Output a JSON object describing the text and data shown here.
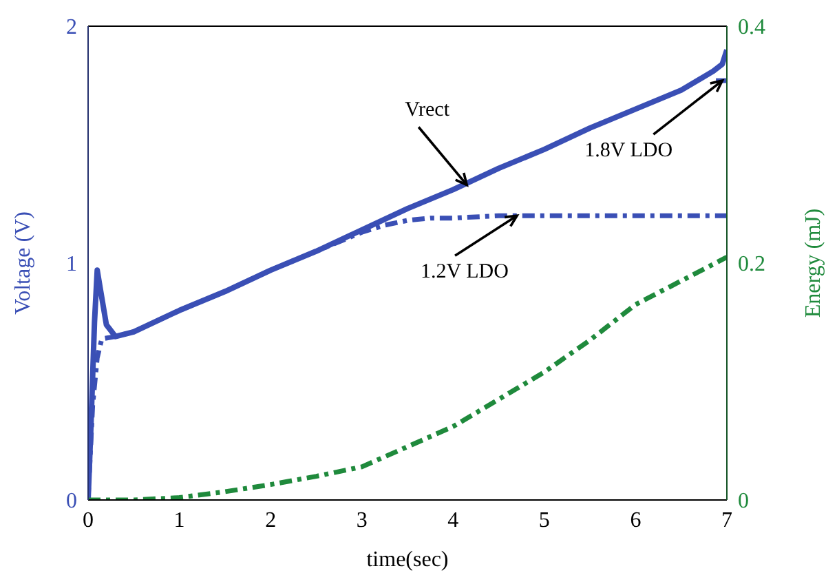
{
  "chart_data": {
    "type": "line",
    "xlabel": "time(sec)",
    "ylabel": "Voltage (V)",
    "y2label": "Energy (mJ)",
    "xlim": [
      0,
      7
    ],
    "xticks": [
      0,
      1,
      2,
      3,
      4,
      5,
      6,
      7
    ],
    "ylim": [
      0,
      2
    ],
    "yticks": [
      0,
      1,
      2
    ],
    "y2lim": [
      0,
      0.4
    ],
    "y2ticks": [
      0,
      0.2,
      0.4
    ],
    "grid": false,
    "legend": false,
    "marker": "none",
    "series": [
      {
        "color": "#3a4fb5",
        "line_style": "solid",
        "x": [
          0,
          0.03,
          0.07,
          0.1,
          0.13,
          0.2,
          0.3,
          0.5,
          1,
          1.5,
          2,
          2.5,
          3,
          3.5,
          4,
          4.5,
          5,
          5.5,
          6,
          6.5,
          6.85,
          6.95,
          7
        ],
        "values": [
          0,
          0.3,
          0.75,
          0.97,
          0.9,
          0.74,
          0.69,
          0.71,
          0.8,
          0.88,
          0.97,
          1.05,
          1.14,
          1.23,
          1.31,
          1.4,
          1.48,
          1.57,
          1.65,
          1.73,
          1.81,
          1.84,
          1.9
        ]
      },
      {
        "color": "#3a4fb5",
        "line_style": "dashed",
        "x": [
          0,
          0.05,
          0.1,
          0.15,
          0.3,
          0.5,
          1,
          1.5,
          2,
          2.5,
          3,
          3.25,
          3.5,
          3.75,
          4,
          4.5,
          5,
          6,
          7
        ],
        "values": [
          0,
          0.4,
          0.6,
          0.68,
          0.69,
          0.71,
          0.8,
          0.88,
          0.97,
          1.05,
          1.13,
          1.16,
          1.18,
          1.19,
          1.19,
          1.2,
          1.2,
          1.2,
          1.2
        ]
      },
      {
        "color": "#3a4fb5",
        "line_style": "dashed",
        "x": [
          6.88,
          7
        ],
        "values": [
          1.77,
          1.77
        ]
      },
      {
        "color": "#1f8a3c",
        "line_style": "dashed",
        "axis": "y2",
        "x": [
          0,
          0.5,
          1,
          1.5,
          2,
          2.5,
          3,
          3.5,
          4,
          4.5,
          5,
          5.5,
          6,
          6.5,
          7
        ],
        "values": [
          0,
          0,
          0.002,
          0.007,
          0.013,
          0.02,
          0.028,
          0.045,
          0.062,
          0.085,
          0.108,
          0.135,
          0.165,
          0.185,
          0.205
        ]
      }
    ],
    "annotations": [
      {
        "text": "Vrect",
        "x": 4.15,
        "y": 1.33
      },
      {
        "text": "1.2V LDO",
        "x": 4.7,
        "y": 1.2
      },
      {
        "text": "1.8V LDO",
        "x": 6.95,
        "y": 1.77
      }
    ]
  }
}
